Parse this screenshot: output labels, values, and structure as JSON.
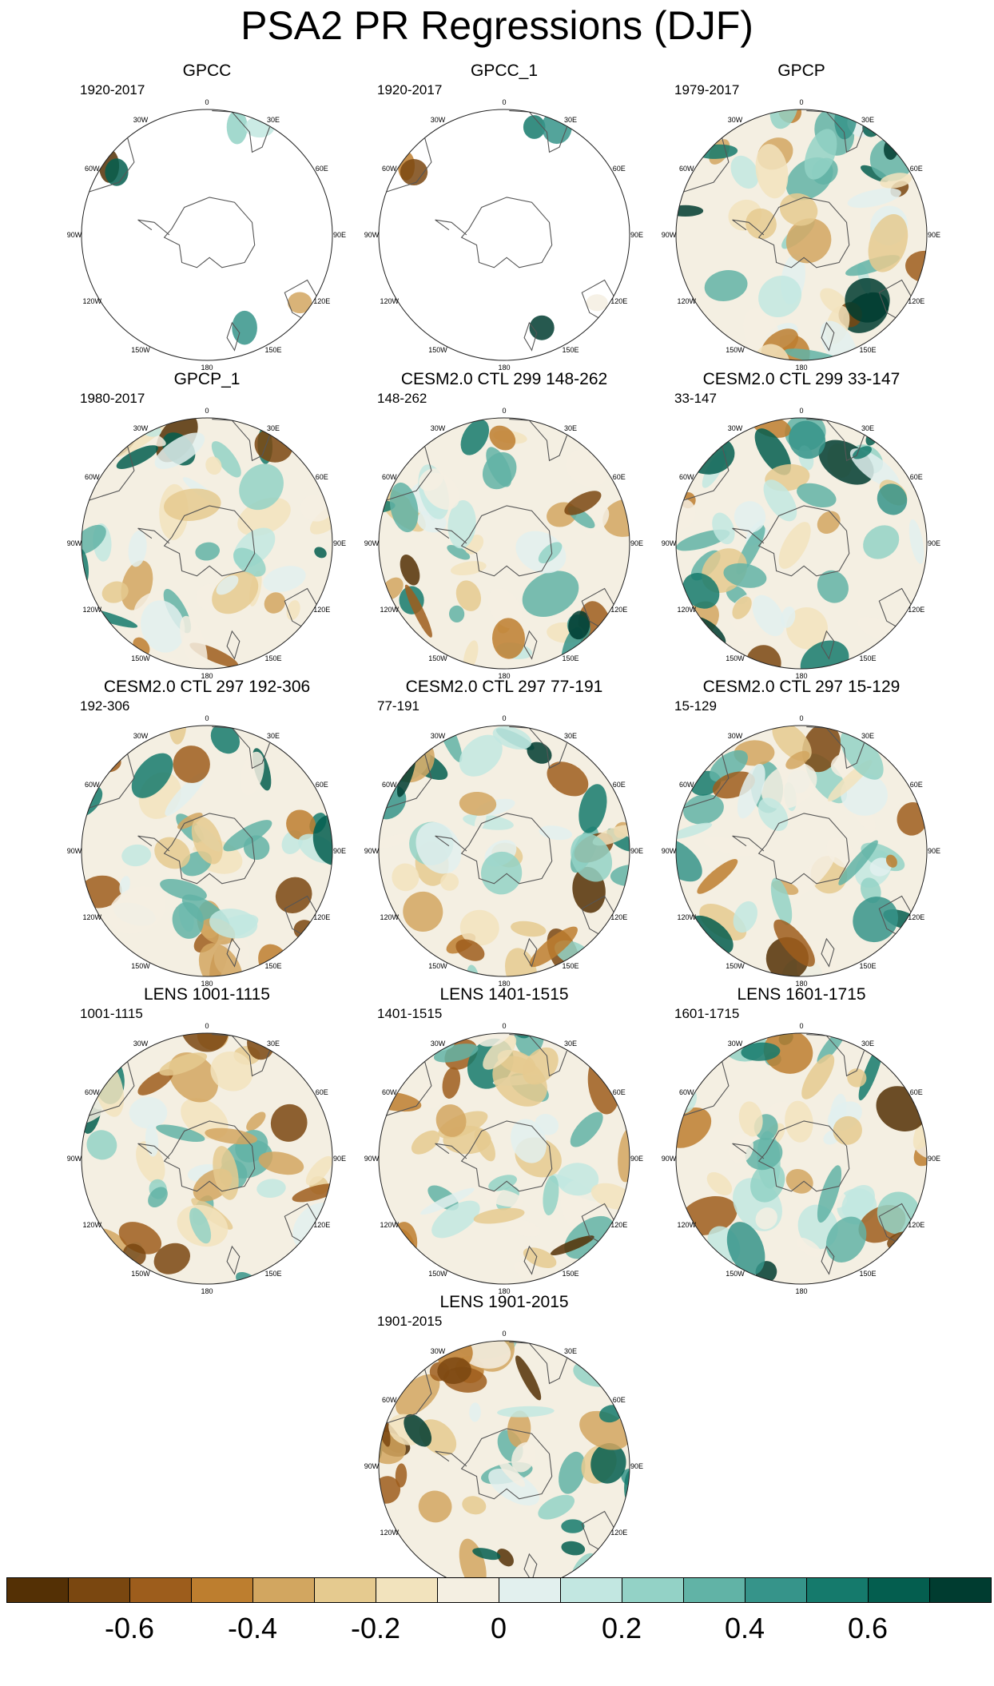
{
  "title": "PSA2 PR Regressions (DJF)",
  "longitude_labels": [
    "0",
    "30E",
    "60E",
    "90E",
    "120E",
    "150E",
    "180",
    "150W",
    "120W",
    "90W",
    "60W",
    "30W"
  ],
  "panels": [
    {
      "title": "GPCC",
      "period": "1920-2017",
      "coverage": "land"
    },
    {
      "title": "GPCC_1",
      "period": "1920-2017",
      "coverage": "land"
    },
    {
      "title": "GPCP",
      "period": "1979-2017",
      "coverage": "full"
    },
    {
      "title": "GPCP_1",
      "period": "1980-2017",
      "coverage": "full"
    },
    {
      "title": "CESM2.0 CTL 299 148-262",
      "period": "148-262",
      "coverage": "full"
    },
    {
      "title": "CESM2.0 CTL 299 33-147",
      "period": "33-147",
      "coverage": "full"
    },
    {
      "title": "CESM2.0 CTL 297 192-306",
      "period": "192-306",
      "coverage": "full"
    },
    {
      "title": "CESM2.0 CTL 297 77-191",
      "period": "77-191",
      "coverage": "full"
    },
    {
      "title": "CESM2.0 CTL 297 15-129",
      "period": "15-129",
      "coverage": "full"
    },
    {
      "title": "LENS 1001-1115",
      "period": "1001-1115",
      "coverage": "full"
    },
    {
      "title": "LENS 1401-1515",
      "period": "1401-1515",
      "coverage": "full"
    },
    {
      "title": "LENS 1601-1715",
      "period": "1601-1715",
      "coverage": "full"
    },
    {
      "title": "LENS 1901-2015",
      "period": "1901-2015",
      "coverage": "full"
    }
  ],
  "colorbar": {
    "colors": [
      "#543005",
      "#7a4710",
      "#9d5d1c",
      "#bd7e2f",
      "#d2a660",
      "#e5ca8f",
      "#f2e3bd",
      "#f4efe2",
      "#e2f0ee",
      "#c2e7e1",
      "#93d2c6",
      "#61b3a6",
      "#36948a",
      "#157a6c",
      "#045e4f",
      "#003c30"
    ],
    "tick_labels": [
      "-0.6",
      "-0.4",
      "-0.2",
      "0",
      "0.2",
      "0.4",
      "0.6"
    ]
  },
  "palette": {
    "background_ocean": "#f4efe2",
    "coastline": "#555555"
  }
}
